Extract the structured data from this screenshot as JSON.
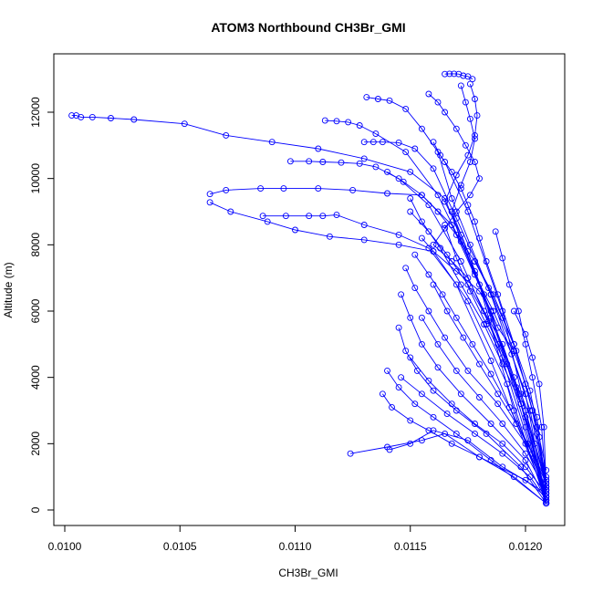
{
  "chart_data": {
    "type": "line",
    "title": "ATOM3 Northbound CH3Br_GMI",
    "xlabel": "CH3Br_GMI",
    "ylabel": "Altitude (m)",
    "xlim": [
      0.01,
      0.0121
    ],
    "ylim": [
      0,
      13200
    ],
    "x_ticks": [
      0.01,
      0.0105,
      0.011,
      0.0115,
      0.012
    ],
    "x_tick_labels": [
      "0.0100",
      "0.0105",
      "0.0110",
      "0.0115",
      "0.0120"
    ],
    "y_ticks": [
      0,
      2000,
      4000,
      6000,
      8000,
      10000,
      12000
    ],
    "y_tick_labels": [
      "0",
      "2000",
      "4000",
      "6000",
      "8000",
      "10000",
      "12000"
    ],
    "grid": false,
    "legend": "none",
    "markers": "open-circle",
    "color": "#0000ff",
    "series": [
      {
        "x": [
          0.01003,
          0.01005,
          0.01007,
          0.01012,
          0.0102,
          0.0103,
          0.01052,
          0.0107,
          0.0109,
          0.0111,
          0.0113,
          0.0115,
          0.01165,
          0.0118,
          0.01195,
          0.01209
        ],
        "y": [
          11900,
          11900,
          11850,
          11850,
          11820,
          11780,
          11650,
          11300,
          11100,
          10900,
          10600,
          10200,
          9400,
          6800,
          3000,
          300
        ]
      },
      {
        "x": [
          0.01063,
          0.0107,
          0.01085,
          0.01095,
          0.0111,
          0.01125,
          0.0114,
          0.01155,
          0.01168,
          0.01185,
          0.012,
          0.01209
        ],
        "y": [
          9530,
          9650,
          9700,
          9700,
          9700,
          9650,
          9550,
          9500,
          8600,
          6000,
          2500,
          250
        ]
      },
      {
        "x": [
          0.01063,
          0.01072,
          0.01088,
          0.011,
          0.01115,
          0.0113,
          0.01145,
          0.0116,
          0.01175,
          0.01192,
          0.01209
        ],
        "y": [
          9280,
          9000,
          8700,
          8450,
          8250,
          8150,
          8000,
          7800,
          6300,
          3800,
          200
        ]
      },
      {
        "x": [
          0.01086,
          0.01096,
          0.01106,
          0.01112,
          0.01118,
          0.0113,
          0.01145,
          0.01158,
          0.0117,
          0.01185,
          0.01209
        ],
        "y": [
          8870,
          8870,
          8870,
          8870,
          8900,
          8600,
          8300,
          7900,
          6800,
          4500,
          400
        ]
      },
      {
        "x": [
          0.01098,
          0.01106,
          0.01112,
          0.0112,
          0.01128,
          0.01135,
          0.01145,
          0.01158,
          0.01172,
          0.01188,
          0.01209
        ],
        "y": [
          10520,
          10520,
          10500,
          10480,
          10450,
          10350,
          10000,
          9200,
          7500,
          5000,
          300
        ]
      },
      {
        "x": [
          0.01113,
          0.01118,
          0.01123,
          0.01128,
          0.01135,
          0.01148,
          0.01162,
          0.01178,
          0.01195,
          0.01209
        ],
        "y": [
          11750,
          11730,
          11700,
          11600,
          11350,
          10800,
          9500,
          7200,
          4000,
          500
        ]
      },
      {
        "x": [
          0.0113,
          0.01134,
          0.01138,
          0.01145,
          0.01152,
          0.0116,
          0.0117,
          0.01185,
          0.012,
          0.01209
        ],
        "y": [
          11100,
          11100,
          11100,
          11080,
          10900,
          10300,
          8800,
          6500,
          3500,
          200
        ]
      },
      {
        "x": [
          0.01131,
          0.01136,
          0.01141,
          0.01148,
          0.01155,
          0.01165,
          0.01175,
          0.0119,
          0.01209
        ],
        "y": [
          12450,
          12400,
          12350,
          12100,
          11500,
          10500,
          9000,
          6000,
          300
        ]
      },
      {
        "x": [
          0.01124,
          0.0114,
          0.01155,
          0.01165,
          0.0118,
          0.012,
          0.01209
        ],
        "y": [
          1700,
          1900,
          2100,
          2300,
          1600,
          900,
          400
        ]
      },
      {
        "x": [
          0.01141,
          0.0115,
          0.0116,
          0.01175,
          0.0119,
          0.01209
        ],
        "y": [
          1820,
          2000,
          2400,
          2100,
          1300,
          500
        ]
      },
      {
        "x": [
          0.01165,
          0.01167,
          0.01169,
          0.01171,
          0.01173,
          0.01175,
          0.01177
        ],
        "y": [
          13150,
          13160,
          13160,
          13150,
          13100,
          13080,
          13000
        ]
      },
      {
        "x": [
          0.01158,
          0.01162,
          0.01165,
          0.0117,
          0.01174,
          0.01178,
          0.0118,
          0.01176,
          0.0117,
          0.01165,
          0.0116,
          0.01168,
          0.01175,
          0.01182,
          0.0119,
          0.012,
          0.01209
        ],
        "y": [
          12550,
          12300,
          12000,
          11500,
          11000,
          10500,
          10000,
          9500,
          9000,
          8500,
          8000,
          7500,
          7000,
          6000,
          5000,
          3000,
          800
        ]
      },
      {
        "x": [
          0.01155,
          0.0116,
          0.0117,
          0.0118,
          0.01185,
          0.01188,
          0.01195,
          0.012,
          0.01205,
          0.01209
        ],
        "y": [
          8200,
          7800,
          7200,
          6600,
          6000,
          5500,
          4800,
          3800,
          2500,
          1200
        ]
      },
      {
        "x": [
          0.0115,
          0.01155,
          0.01163,
          0.01172,
          0.01182,
          0.0119,
          0.01198,
          0.01204,
          0.01209
        ],
        "y": [
          9400,
          8700,
          7900,
          6800,
          5600,
          4400,
          3200,
          2000,
          700
        ]
      },
      {
        "x": [
          0.01148,
          0.01152,
          0.01158,
          0.01165,
          0.01175,
          0.01188,
          0.012,
          0.01209
        ],
        "y": [
          7300,
          6700,
          6000,
          5200,
          4200,
          3200,
          2000,
          600
        ]
      },
      {
        "x": [
          0.01146,
          0.0115,
          0.01155,
          0.01162,
          0.01172,
          0.01185,
          0.012,
          0.01209
        ],
        "y": [
          6500,
          5800,
          5000,
          4300,
          3500,
          2600,
          1500,
          300
        ]
      },
      {
        "x": [
          0.01145,
          0.01148,
          0.01153,
          0.0116,
          0.0117,
          0.01183,
          0.01198,
          0.01209
        ],
        "y": [
          5500,
          4800,
          4200,
          3600,
          3000,
          2300,
          1300,
          200
        ]
      },
      {
        "x": [
          0.0114,
          0.01145,
          0.01152,
          0.0116,
          0.0117,
          0.01185,
          0.01209
        ],
        "y": [
          4200,
          3700,
          3200,
          2800,
          2300,
          1500,
          200
        ]
      },
      {
        "x": [
          0.01138,
          0.01142,
          0.0115,
          0.01158,
          0.01168,
          0.0118,
          0.01195,
          0.01209
        ],
        "y": [
          3500,
          3100,
          2700,
          2400,
          2000,
          1600,
          1000,
          200
        ]
      },
      {
        "x": [
          0.01187,
          0.0119,
          0.01193,
          0.01197,
          0.012,
          0.01203,
          0.01207,
          0.01209
        ],
        "y": [
          8400,
          7600,
          6800,
          6000,
          5000,
          4000,
          2500,
          600
        ]
      },
      {
        "x": [
          0.01195,
          0.012,
          0.01203,
          0.01206,
          0.01208,
          0.01209
        ],
        "y": [
          6000,
          5300,
          4600,
          3800,
          2500,
          600
        ]
      },
      {
        "x": [
          0.01178,
          0.01184,
          0.0119,
          0.01196,
          0.01202,
          0.01206,
          0.01209
        ],
        "y": [
          7500,
          6700,
          5800,
          4800,
          3600,
          2200,
          700
        ]
      },
      {
        "x": [
          0.01168,
          0.01172,
          0.01178,
          0.01186,
          0.01194,
          0.01202,
          0.01209
        ],
        "y": [
          9000,
          8100,
          7100,
          6000,
          4700,
          3000,
          700
        ]
      },
      {
        "x": [
          0.01162,
          0.01168,
          0.01176,
          0.01185,
          0.01195,
          0.01205,
          0.01209
        ],
        "y": [
          10800,
          9400,
          8000,
          6500,
          4800,
          2800,
          500
        ]
      },
      {
        "x": [
          0.01172,
          0.01174,
          0.01176,
          0.01178,
          0.01176,
          0.01172,
          0.01168,
          0.01175,
          0.01185,
          0.01198,
          0.01209
        ],
        "y": [
          12800,
          12300,
          11800,
          11200,
          10500,
          9800,
          9000,
          7800,
          5800,
          3200,
          300
        ]
      },
      {
        "x": [
          0.01176,
          0.01178,
          0.01179,
          0.01178,
          0.01175,
          0.0117,
          0.01165,
          0.01172,
          0.01182,
          0.01196,
          0.01209
        ],
        "y": [
          12850,
          12400,
          11900,
          11300,
          10700,
          10100,
          9300,
          8300,
          6500,
          3700,
          400
        ]
      },
      {
        "x": [
          0.0116,
          0.01163,
          0.01168,
          0.01172,
          0.01175,
          0.01178,
          0.0118,
          0.01183,
          0.01188,
          0.01195,
          0.01203,
          0.01209
        ],
        "y": [
          11100,
          10700,
          10200,
          9700,
          9200,
          8700,
          8200,
          7500,
          6500,
          5000,
          3000,
          800
        ]
      },
      {
        "x": [
          0.0114,
          0.01147,
          0.01155,
          0.01162,
          0.0117,
          0.01178,
          0.01186,
          0.01195,
          0.01203,
          0.01209
        ],
        "y": [
          10200,
          9900,
          9500,
          9000,
          8300,
          7500,
          6500,
          5000,
          3000,
          700
        ]
      },
      {
        "x": [
          0.0115,
          0.01158,
          0.01166,
          0.01175,
          0.01184,
          0.01192,
          0.012,
          0.01209
        ],
        "y": [
          9000,
          8400,
          7700,
          6800,
          5700,
          4400,
          2800,
          900
        ]
      },
      {
        "x": [
          0.01152,
          0.01158,
          0.01164,
          0.0117,
          0.01177,
          0.01185,
          0.01193,
          0.01201,
          0.01209
        ],
        "y": [
          7700,
          7100,
          6500,
          5800,
          5000,
          4100,
          3100,
          2000,
          900
        ]
      },
      {
        "x": [
          0.0116,
          0.01166,
          0.01173,
          0.0118,
          0.01188,
          0.01196,
          0.01203,
          0.01209
        ],
        "y": [
          6800,
          6000,
          5200,
          4400,
          3500,
          2600,
          1700,
          800
        ]
      },
      {
        "x": [
          0.01165,
          0.0117,
          0.01176,
          0.01183,
          0.0119,
          0.01198,
          0.01205,
          0.01209
        ],
        "y": [
          8600,
          7600,
          6600,
          5600,
          4600,
          3500,
          2300,
          1000
        ]
      },
      {
        "x": [
          0.01155,
          0.01162,
          0.0117,
          0.0118,
          0.0119,
          0.012,
          0.01209
        ],
        "y": [
          5800,
          5000,
          4200,
          3400,
          2600,
          1700,
          600
        ]
      },
      {
        "x": [
          0.0115,
          0.01158,
          0.01168,
          0.01178,
          0.0119,
          0.012,
          0.01209
        ],
        "y": [
          4600,
          3900,
          3200,
          2600,
          2000,
          1300,
          500
        ]
      },
      {
        "x": [
          0.01146,
          0.01155,
          0.01166,
          0.01178,
          0.0119,
          0.01202,
          0.01209
        ],
        "y": [
          4000,
          3500,
          2900,
          2300,
          1700,
          1000,
          300
        ]
      }
    ]
  }
}
